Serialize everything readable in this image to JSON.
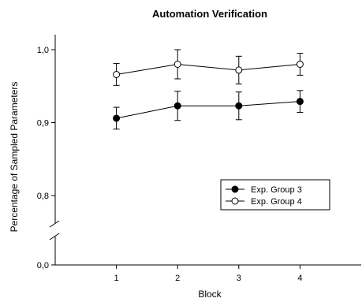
{
  "chart_data": {
    "type": "line",
    "title": "Automation Verification",
    "xlabel": "Block",
    "ylabel": "Percentage of Sampled Parameters",
    "x": [
      1,
      2,
      3,
      4
    ],
    "x_tick_labels": [
      "1",
      "2",
      "3",
      "4"
    ],
    "xlim": [
      0,
      5
    ],
    "y_ticks": [
      {
        "value": 1.0,
        "label": "1,0"
      },
      {
        "value": 0.9,
        "label": "0,9"
      },
      {
        "value": 0.8,
        "label": "0,8"
      },
      {
        "value": 0.0,
        "label": "0,0"
      }
    ],
    "y_axis_break": true,
    "y_scale_segment": [
      0.75,
      1.03
    ],
    "grid": false,
    "legend_position": "center-right",
    "series": [
      {
        "name": "Exp. Group 3",
        "marker": "filled-circle",
        "color": "#000000",
        "values": [
          0.906,
          0.923,
          0.923,
          0.929
        ],
        "errors": [
          0.015,
          0.02,
          0.019,
          0.015
        ]
      },
      {
        "name": "Exp. Group 4",
        "marker": "open-circle",
        "color": "#000000",
        "values": [
          0.966,
          0.98,
          0.972,
          0.98
        ],
        "errors": [
          0.015,
          0.02,
          0.019,
          0.015
        ]
      }
    ]
  }
}
